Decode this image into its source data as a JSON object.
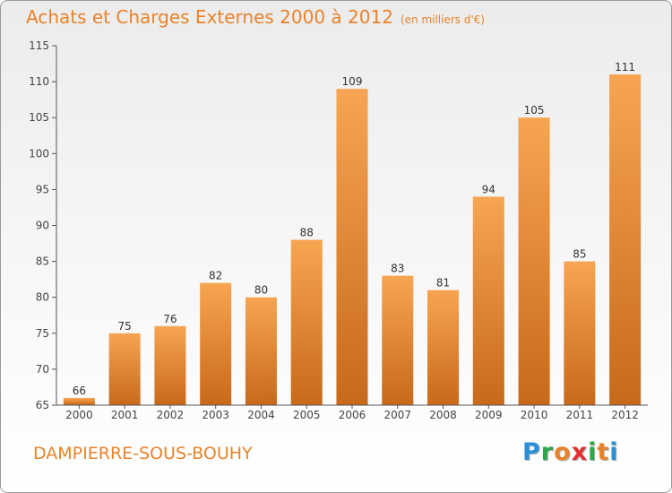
{
  "header": {
    "title": "Achats et Charges Externes 2000 à 2012",
    "subtitle": "(en milliers d'€)"
  },
  "footer": {
    "commune": "DAMPIERRE-SOUS-BOUHY"
  },
  "logo": {
    "letters": [
      "P",
      "r",
      "o",
      "x",
      "i",
      "t",
      "i"
    ],
    "colors": [
      "#2a8fd6",
      "#2aa84a",
      "#e8832a",
      "#e03030",
      "#2aa84a",
      "#e8832a",
      "#2a8fd6"
    ]
  },
  "colors": {
    "bar_light": "#f7a552",
    "bar_dark": "#c8691a",
    "title": "#e8832a"
  },
  "chart_data": {
    "type": "bar",
    "categories": [
      "2000",
      "2001",
      "2002",
      "2003",
      "2004",
      "2005",
      "2006",
      "2007",
      "2008",
      "2009",
      "2010",
      "2011",
      "2012"
    ],
    "values": [
      66,
      75,
      76,
      82,
      80,
      88,
      109,
      83,
      81,
      94,
      105,
      85,
      111
    ],
    "data_labels": [
      "66",
      "75",
      "76",
      "82",
      "80",
      "88",
      "109",
      "83",
      "81",
      "94",
      "105",
      "85",
      "111"
    ],
    "title": "Achats et Charges Externes 2000 à 2012",
    "subtitle": "(en milliers d'€)",
    "xlabel": "",
    "ylabel": "",
    "ylim": [
      65,
      115
    ],
    "yticks": [
      65,
      70,
      75,
      80,
      85,
      90,
      95,
      100,
      105,
      110,
      115
    ],
    "grid": false
  }
}
